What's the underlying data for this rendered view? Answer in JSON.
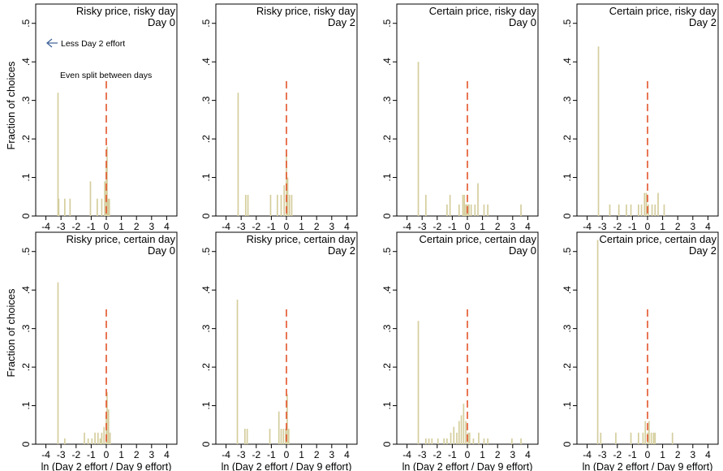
{
  "chart_data": {
    "type": "bar",
    "ylabel": "Fraction of choices",
    "xlabel": "ln (Day 2 effort / Day 9 effort)",
    "xlim": [
      -4.3,
      4.3
    ],
    "ylim": [
      0,
      0.55
    ],
    "x_ticks": [
      -4,
      -3,
      -2,
      -1,
      0,
      1,
      2,
      3,
      4
    ],
    "x_tick_labels": [
      "-4",
      "-3",
      "-2",
      "-1",
      "0",
      "1",
      "2",
      "3",
      "4"
    ],
    "y_ticks": [
      0,
      0.1,
      0.2,
      0.3,
      0.4,
      0.5
    ],
    "y_tick_labels": [
      "0",
      ".1",
      ".2",
      ".3",
      ".4",
      ".5"
    ],
    "bar_width": 0.1,
    "reference_line": {
      "x": 0,
      "y_top": 0.35
    },
    "colors": {
      "bar": "#d4cd9c",
      "reference": "#e2542a",
      "annotation_arrow": "#3a5f96",
      "annotation_split": "#e2542a"
    },
    "annotations": {
      "less_effort": "Less Day 2 effort",
      "even_split": "Even split between days"
    },
    "panels": [
      {
        "title_line1": "Risky price, risky day",
        "title_line2": "Day 0",
        "bars": [
          {
            "x": -3.2,
            "y": 0.32
          },
          {
            "x": -3.15,
            "y": 0.045
          },
          {
            "x": -2.75,
            "y": 0.045
          },
          {
            "x": -2.4,
            "y": 0.045
          },
          {
            "x": -1.05,
            "y": 0.09
          },
          {
            "x": -0.6,
            "y": 0.045
          },
          {
            "x": -0.3,
            "y": 0.045
          },
          {
            "x": -0.1,
            "y": 0.09
          },
          {
            "x": 0.0,
            "y": 0.14
          },
          {
            "x": 0.05,
            "y": 0.18
          },
          {
            "x": 0.12,
            "y": 0.045
          },
          {
            "x": 0.2,
            "y": 0.045
          }
        ]
      },
      {
        "title_line1": "Risky price, risky day",
        "title_line2": "Day 2",
        "bars": [
          {
            "x": -3.2,
            "y": 0.32
          },
          {
            "x": -2.7,
            "y": 0.055
          },
          {
            "x": -2.55,
            "y": 0.055
          },
          {
            "x": -1.05,
            "y": 0.055
          },
          {
            "x": -0.6,
            "y": 0.055
          },
          {
            "x": -0.35,
            "y": 0.055
          },
          {
            "x": -0.15,
            "y": 0.08
          },
          {
            "x": 0.0,
            "y": 0.16
          },
          {
            "x": 0.08,
            "y": 0.1
          },
          {
            "x": 0.2,
            "y": 0.055
          },
          {
            "x": 0.35,
            "y": 0.055
          }
        ]
      },
      {
        "title_line1": "Certain price, risky day",
        "title_line2": "Day 0",
        "bars": [
          {
            "x": -3.25,
            "y": 0.4
          },
          {
            "x": -2.75,
            "y": 0.055
          },
          {
            "x": -1.35,
            "y": 0.03
          },
          {
            "x": -1.15,
            "y": 0.055
          },
          {
            "x": -0.55,
            "y": 0.03
          },
          {
            "x": -0.3,
            "y": 0.055
          },
          {
            "x": -0.2,
            "y": 0.055
          },
          {
            "x": -0.1,
            "y": 0.03
          },
          {
            "x": 0.0,
            "y": 0.03
          },
          {
            "x": 0.1,
            "y": 0.03
          },
          {
            "x": 0.25,
            "y": 0.03
          },
          {
            "x": 0.5,
            "y": 0.03
          },
          {
            "x": 0.7,
            "y": 0.085
          },
          {
            "x": 1.1,
            "y": 0.03
          },
          {
            "x": 1.35,
            "y": 0.03
          },
          {
            "x": 3.55,
            "y": 0.03
          }
        ]
      },
      {
        "title_line1": "Certain price, risky day",
        "title_line2": "Day 2",
        "bars": [
          {
            "x": -3.25,
            "y": 0.44
          },
          {
            "x": -2.5,
            "y": 0.03
          },
          {
            "x": -1.9,
            "y": 0.03
          },
          {
            "x": -1.4,
            "y": 0.03
          },
          {
            "x": -1.1,
            "y": 0.03
          },
          {
            "x": -0.6,
            "y": 0.03
          },
          {
            "x": -0.4,
            "y": 0.03
          },
          {
            "x": -0.2,
            "y": 0.06
          },
          {
            "x": -0.08,
            "y": 0.06
          },
          {
            "x": 0.05,
            "y": 0.03
          },
          {
            "x": 0.3,
            "y": 0.03
          },
          {
            "x": 0.5,
            "y": 0.03
          },
          {
            "x": 0.7,
            "y": 0.06
          },
          {
            "x": 1.1,
            "y": 0.03
          }
        ]
      },
      {
        "title_line1": "Risky price, certain day",
        "title_line2": "Day 0",
        "bars": [
          {
            "x": -3.2,
            "y": 0.42
          },
          {
            "x": -2.75,
            "y": 0.015
          },
          {
            "x": -1.45,
            "y": 0.03
          },
          {
            "x": -1.2,
            "y": 0.015
          },
          {
            "x": -0.95,
            "y": 0.015
          },
          {
            "x": -0.75,
            "y": 0.03
          },
          {
            "x": -0.55,
            "y": 0.03
          },
          {
            "x": -0.4,
            "y": 0.015
          },
          {
            "x": -0.3,
            "y": 0.03
          },
          {
            "x": -0.15,
            "y": 0.045
          },
          {
            "x": 0.0,
            "y": 0.075
          },
          {
            "x": 0.05,
            "y": 0.135
          },
          {
            "x": 0.15,
            "y": 0.09
          },
          {
            "x": 0.25,
            "y": 0.03
          }
        ]
      },
      {
        "title_line1": "Risky price, certain day",
        "title_line2": "Day 2",
        "bars": [
          {
            "x": -3.25,
            "y": 0.375
          },
          {
            "x": -2.75,
            "y": 0.04
          },
          {
            "x": -2.6,
            "y": 0.04
          },
          {
            "x": -1.1,
            "y": 0.04
          },
          {
            "x": -0.5,
            "y": 0.085
          },
          {
            "x": -0.35,
            "y": 0.04
          },
          {
            "x": -0.2,
            "y": 0.04
          },
          {
            "x": -0.05,
            "y": 0.04
          },
          {
            "x": 0.05,
            "y": 0.13
          },
          {
            "x": 0.15,
            "y": 0.04
          }
        ]
      },
      {
        "title_line1": "Certain price, certain day",
        "title_line2": "Day 0",
        "bars": [
          {
            "x": -3.25,
            "y": 0.32
          },
          {
            "x": -2.75,
            "y": 0.015
          },
          {
            "x": -2.55,
            "y": 0.015
          },
          {
            "x": -2.35,
            "y": 0.015
          },
          {
            "x": -1.95,
            "y": 0.015
          },
          {
            "x": -1.55,
            "y": 0.015
          },
          {
            "x": -1.35,
            "y": 0.015
          },
          {
            "x": -1.1,
            "y": 0.03
          },
          {
            "x": -0.9,
            "y": 0.045
          },
          {
            "x": -0.7,
            "y": 0.03
          },
          {
            "x": -0.55,
            "y": 0.06
          },
          {
            "x": -0.4,
            "y": 0.075
          },
          {
            "x": -0.25,
            "y": 0.105
          },
          {
            "x": -0.1,
            "y": 0.06
          },
          {
            "x": 0.05,
            "y": 0.03
          },
          {
            "x": 0.15,
            "y": 0.03
          },
          {
            "x": 0.4,
            "y": 0.015
          },
          {
            "x": 0.75,
            "y": 0.03
          },
          {
            "x": 1.1,
            "y": 0.015
          },
          {
            "x": 1.35,
            "y": 0.015
          },
          {
            "x": 2.95,
            "y": 0.015
          },
          {
            "x": 3.55,
            "y": 0.015
          }
        ]
      },
      {
        "title_line1": "Certain price, certain day",
        "title_line2": "Day 2",
        "bars": [
          {
            "x": -3.3,
            "y": 0.53
          },
          {
            "x": -3.1,
            "y": 0.03
          },
          {
            "x": -2.1,
            "y": 0.03
          },
          {
            "x": -1.1,
            "y": 0.03
          },
          {
            "x": -0.6,
            "y": 0.03
          },
          {
            "x": -0.3,
            "y": 0.03
          },
          {
            "x": -0.15,
            "y": 0.06
          },
          {
            "x": 0.0,
            "y": 0.03
          },
          {
            "x": 0.1,
            "y": 0.06
          },
          {
            "x": 0.25,
            "y": 0.03
          },
          {
            "x": 0.4,
            "y": 0.03
          },
          {
            "x": 0.5,
            "y": 0.03
          },
          {
            "x": 1.65,
            "y": 0.03
          }
        ]
      }
    ]
  }
}
